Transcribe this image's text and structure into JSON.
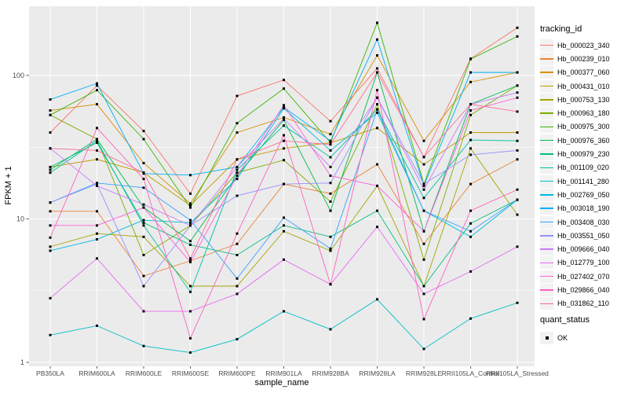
{
  "figure": {
    "background": "#FFFFFF",
    "panel_background": "#EBEBEB",
    "grid_color": "#FFFFFF",
    "tick_label_color": "#4D4D4D",
    "text_color": "#000000",
    "point_color": "#000000"
  },
  "chart_data": {
    "type": "line",
    "title": "",
    "xlabel": "sample_name",
    "ylabel": "FPKM + 1",
    "y_scale": "log10",
    "y_ticks": [
      "1",
      "10",
      "100"
    ],
    "y_minor_breaks": [
      3.1623,
      31.623,
      316.23
    ],
    "ylim": [
      1,
      300
    ],
    "grid": "on",
    "legend_position": "right",
    "point_shape": "filled-square",
    "categories": [
      "PB350LA",
      "RRIM600LA",
      "RRIM600LE",
      "RRIM600SE",
      "RRIM600PE",
      "RRIM901LA",
      "RRIM928BA",
      "RRIM928LA",
      "RRIM928LE",
      "RRII105LA_Control",
      "RRII105LA_Stressed"
    ],
    "series": [
      {
        "name": "Hb_000023_340",
        "color": "#F8766D",
        "values": [
          40,
          85,
          41,
          15,
          72,
          93,
          48,
          112,
          27,
          131,
          215
        ]
      },
      {
        "name": "Hb_000239_010",
        "color": "#EA8331",
        "values": [
          11.3,
          11.3,
          4.0,
          5.1,
          6.7,
          17.5,
          15,
          24,
          6.7,
          17.5,
          26
        ]
      },
      {
        "name": "Hb_000377_060",
        "color": "#D89000",
        "values": [
          57,
          63,
          24.5,
          12.8,
          40,
          51,
          39,
          138,
          35,
          90,
          105
        ]
      },
      {
        "name": "Hb_000431_010",
        "color": "#C09B00",
        "values": [
          23,
          26,
          21,
          12.4,
          26,
          31,
          34,
          43,
          24,
          40,
          40
        ]
      },
      {
        "name": "Hb_000753_130",
        "color": "#A3A500",
        "values": [
          6.4,
          7.9,
          7.5,
          3.4,
          3.4,
          8.2,
          6.0,
          17,
          3.4,
          31,
          10.7
        ]
      },
      {
        "name": "Hb_000963_180",
        "color": "#7CAE00",
        "values": [
          53,
          36,
          5.6,
          9.0,
          21,
          25.7,
          13.2,
          63,
          5.2,
          53,
          85
        ]
      },
      {
        "name": "Hb_000975_300",
        "color": "#39B600",
        "values": [
          53,
          79,
          36,
          12,
          46.5,
          81,
          34,
          233,
          17.5,
          130,
          187
        ]
      },
      {
        "name": "Hb_000976_360",
        "color": "#00BB4E",
        "values": [
          22,
          36,
          12,
          7.0,
          20,
          49,
          11.4,
          105,
          8.2,
          63,
          85
        ]
      },
      {
        "name": "Hb_000979_230",
        "color": "#00BF7D",
        "values": [
          23,
          34,
          9.4,
          6.6,
          5.6,
          9.0,
          7.5,
          11.4,
          3.4,
          9.3,
          13.6
        ]
      },
      {
        "name": "Hb_001109_020",
        "color": "#00C1A3",
        "values": [
          21,
          35,
          9.0,
          3.1,
          22,
          44.7,
          26.9,
          58,
          14,
          35.5,
          35
        ]
      },
      {
        "name": "Hb_001141_280",
        "color": "#00BFC4",
        "values": [
          1.55,
          1.8,
          1.3,
          1.17,
          1.45,
          2.27,
          1.7,
          2.75,
          1.24,
          2.02,
          2.6
        ]
      },
      {
        "name": "Hb_002769_050",
        "color": "#00BBDA",
        "values": [
          6.0,
          7.2,
          9.8,
          9.4,
          19,
          59,
          30,
          55,
          11.4,
          7.5,
          13.6
        ]
      },
      {
        "name": "Hb_003018_190",
        "color": "#00B0F6",
        "values": [
          68,
          88,
          20.7,
          20.2,
          23,
          60,
          35,
          178,
          17,
          105,
          105
        ]
      },
      {
        "name": "Hb_003408_030",
        "color": "#35A2FF",
        "values": [
          13,
          17.8,
          16.5,
          9.8,
          3.84,
          10.2,
          6.2,
          58,
          11.4,
          8.2,
          13.6
        ]
      },
      {
        "name": "Hb_003551_050",
        "color": "#9590FF",
        "values": [
          13,
          17.5,
          3.4,
          9.0,
          14.5,
          17.5,
          17.8,
          70,
          17.5,
          28,
          30
        ]
      },
      {
        "name": "Hb_009666_040",
        "color": "#C77CFF",
        "values": [
          31,
          17,
          12.6,
          9.0,
          23,
          50,
          23,
          70,
          16,
          63,
          76
        ]
      },
      {
        "name": "Hb_012779_100",
        "color": "#E76BF3",
        "values": [
          2.8,
          5.3,
          2.27,
          2.27,
          3.0,
          5.2,
          3.5,
          8.8,
          3.0,
          4.3,
          6.4
        ]
      },
      {
        "name": "Hb_027402_070",
        "color": "#FA62DB",
        "values": [
          9.0,
          9.0,
          12,
          5.0,
          20,
          62,
          20,
          17,
          8.2,
          57,
          70
        ]
      },
      {
        "name": "Hb_029866_040",
        "color": "#FF62BC",
        "values": [
          7.4,
          43,
          19,
          1.47,
          7.9,
          38.3,
          3.5,
          79,
          2.0,
          11.4,
          16
        ]
      },
      {
        "name": "Hb_031862_110",
        "color": "#FF6A98",
        "values": [
          31,
          30,
          21,
          5.3,
          26,
          35,
          33,
          105,
          27,
          63,
          56
        ]
      }
    ]
  },
  "legend": {
    "tracking_title": "tracking_id",
    "quant_title": "quant_status",
    "quant_items": [
      {
        "label": "OK"
      }
    ]
  }
}
